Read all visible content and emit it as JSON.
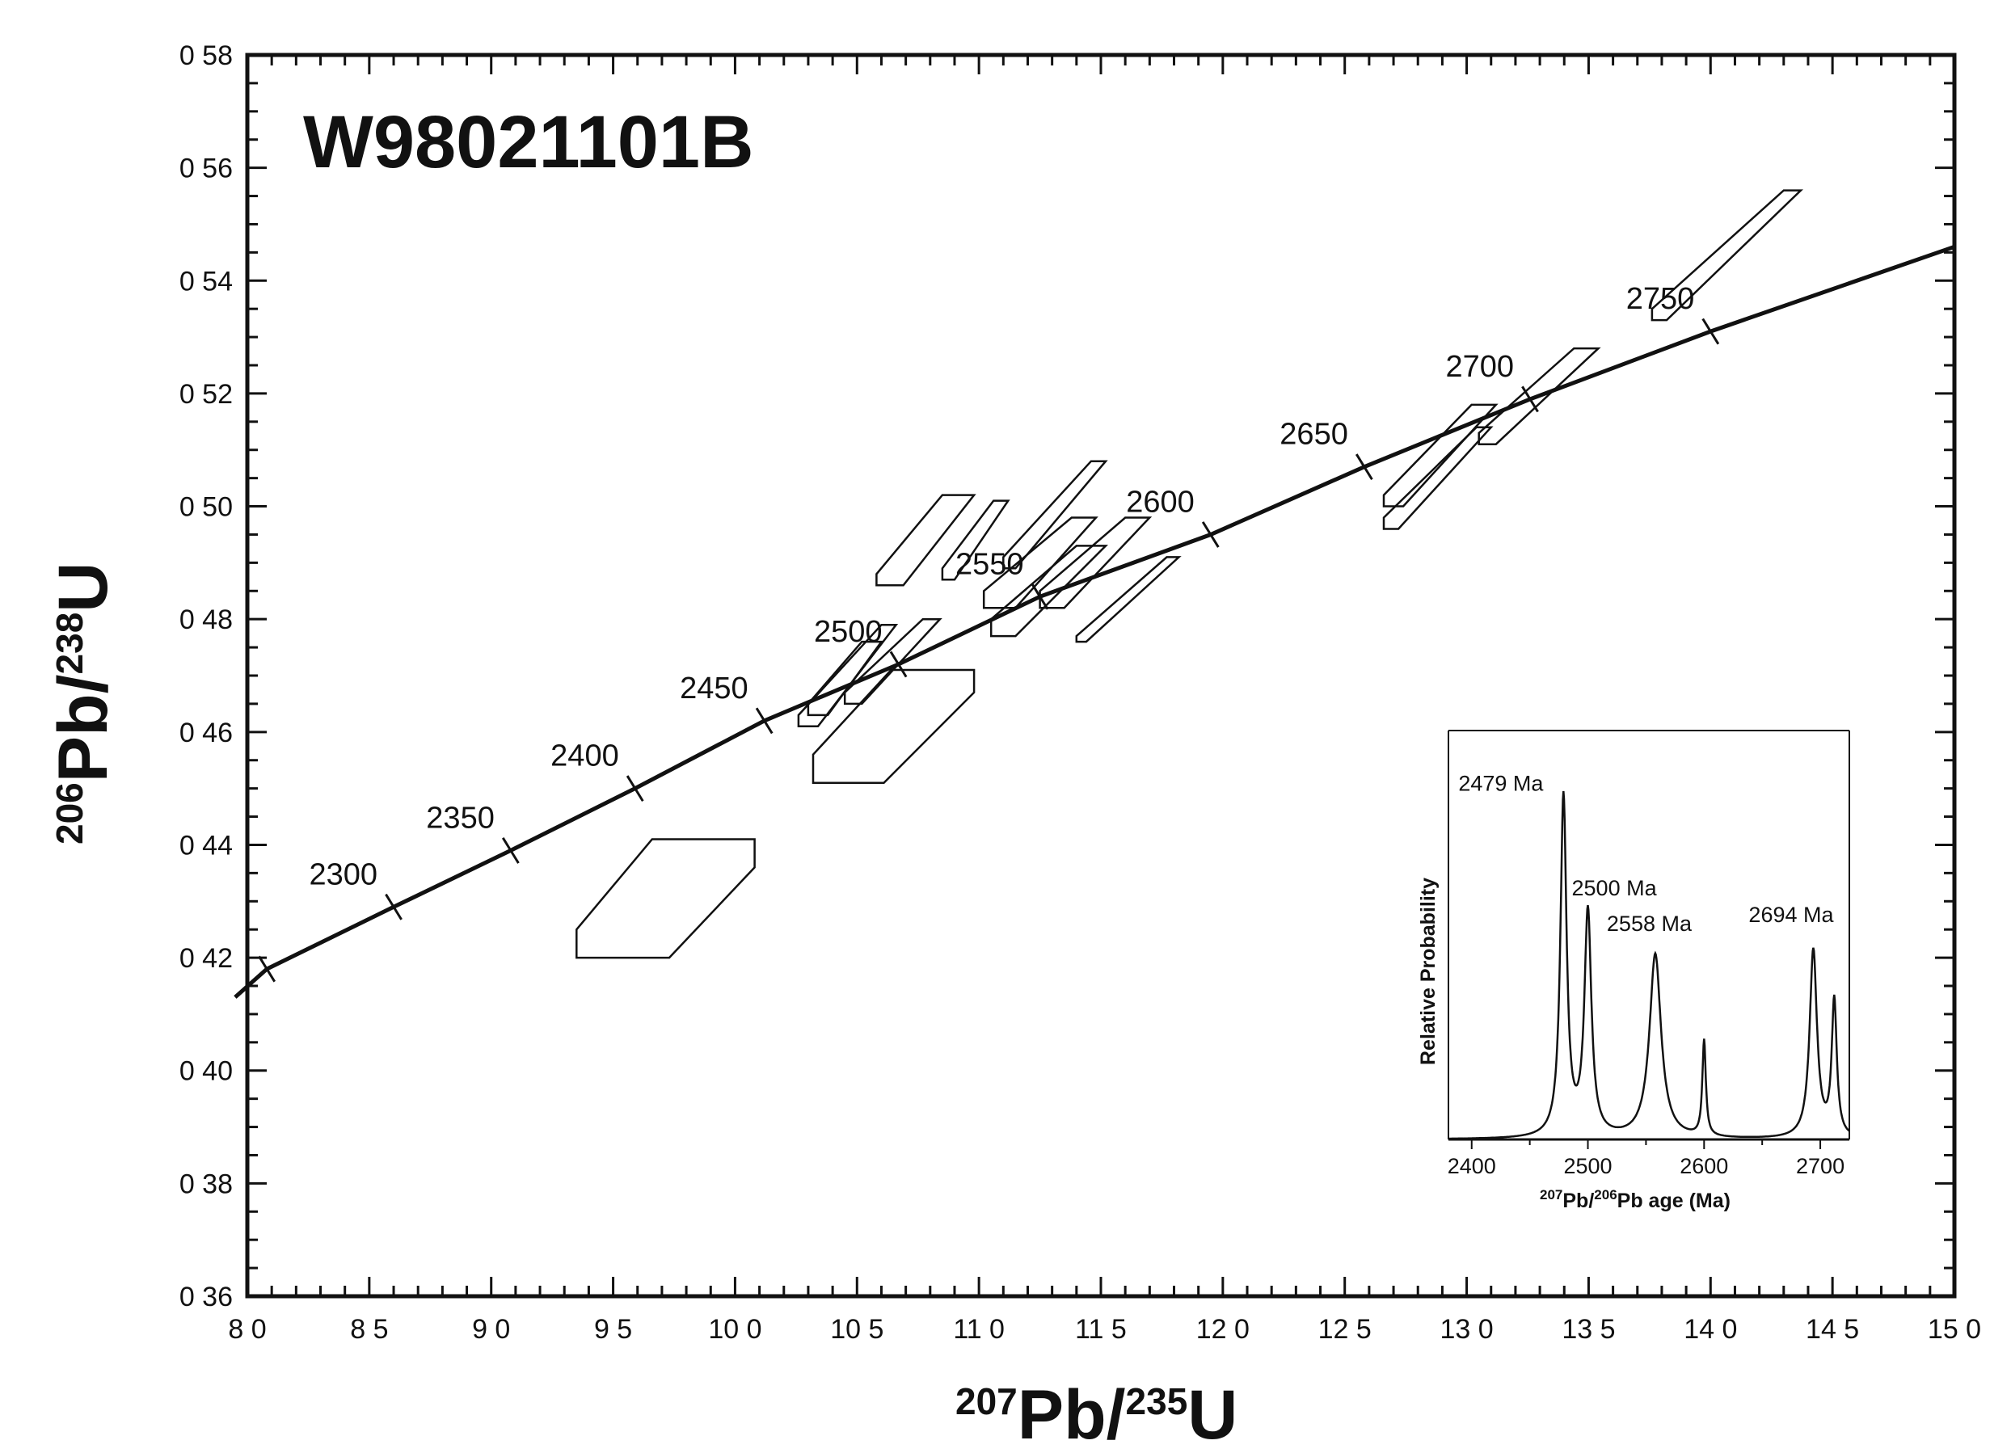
{
  "chart_data": [
    {
      "type": "scatter",
      "title": "W98021101B",
      "xlabel": {
        "sup1": "207",
        "base1": "Pb/",
        "sup2": "235",
        "base2": "U"
      },
      "ylabel": {
        "sup1": "206",
        "base1": "Pb/",
        "sup2": "238",
        "base2": "U"
      },
      "xlim": [
        8.0,
        15.0
      ],
      "ylim": [
        0.36,
        0.58
      ],
      "x_tick_labels": [
        "8 0",
        "8 5",
        "9 0",
        "9 5",
        "10 0",
        "10 5",
        "11 0",
        "11 5",
        "12 0",
        "12 5",
        "13 0",
        "13 5",
        "14 0",
        "14 5",
        "15 0"
      ],
      "x_tick_values": [
        8.0,
        8.5,
        9.0,
        9.5,
        10.0,
        10.5,
        11.0,
        11.5,
        12.0,
        12.5,
        13.0,
        13.5,
        14.0,
        14.5,
        15.0
      ],
      "y_tick_labels": [
        "0 36",
        "0 38",
        "0 40",
        "0 42",
        "0 44",
        "0 46",
        "0 48",
        "0 50",
        "0 52",
        "0 54",
        "0 56",
        "0 58"
      ],
      "y_tick_values": [
        0.36,
        0.38,
        0.4,
        0.42,
        0.44,
        0.46,
        0.48,
        0.5,
        0.52,
        0.54,
        0.56,
        0.58
      ],
      "concordia": {
        "ages": [
          {
            "label": "2300",
            "x": 8.6,
            "y": 0.429
          },
          {
            "label": "2350",
            "x": 9.08,
            "y": 0.439
          },
          {
            "label": "2400",
            "x": 9.59,
            "y": 0.45
          },
          {
            "label": "2450",
            "x": 10.12,
            "y": 0.462
          },
          {
            "label": "2500",
            "x": 10.67,
            "y": 0.472
          },
          {
            "label": "2550",
            "x": 11.25,
            "y": 0.484
          },
          {
            "label": "2600",
            "x": 11.95,
            "y": 0.495
          },
          {
            "label": "2650",
            "x": 12.58,
            "y": 0.507
          },
          {
            "label": "2700",
            "x": 13.26,
            "y": 0.519
          },
          {
            "label": "2750",
            "x": 14.0,
            "y": 0.531
          }
        ],
        "extra_ticks": [
          {
            "x": 8.08,
            "y": 0.418
          }
        ],
        "curve": [
          [
            7.95,
            0.413
          ],
          [
            8.08,
            0.418
          ],
          [
            8.6,
            0.429
          ],
          [
            9.08,
            0.439
          ],
          [
            9.59,
            0.45
          ],
          [
            10.12,
            0.462
          ],
          [
            10.67,
            0.472
          ],
          [
            11.25,
            0.484
          ],
          [
            11.95,
            0.495
          ],
          [
            12.58,
            0.507
          ],
          [
            13.26,
            0.519
          ],
          [
            14.0,
            0.531
          ],
          [
            15.0,
            0.546
          ]
        ]
      },
      "error_ellipses": [
        [
          [
            9.35,
            0.42
          ],
          [
            9.73,
            0.42
          ],
          [
            10.08,
            0.436
          ],
          [
            10.08,
            0.441
          ],
          [
            9.66,
            0.441
          ],
          [
            9.35,
            0.425
          ]
        ],
        [
          [
            10.32,
            0.451
          ],
          [
            10.61,
            0.451
          ],
          [
            10.98,
            0.467
          ],
          [
            10.98,
            0.471
          ],
          [
            10.64,
            0.471
          ],
          [
            10.32,
            0.456
          ]
        ],
        [
          [
            10.26,
            0.461
          ],
          [
            10.34,
            0.461
          ],
          [
            10.66,
            0.479
          ],
          [
            10.6,
            0.479
          ],
          [
            10.26,
            0.463
          ]
        ],
        [
          [
            10.3,
            0.463
          ],
          [
            10.38,
            0.463
          ],
          [
            10.6,
            0.476
          ],
          [
            10.52,
            0.476
          ],
          [
            10.3,
            0.465
          ]
        ],
        [
          [
            10.45,
            0.465
          ],
          [
            10.52,
            0.465
          ],
          [
            10.84,
            0.48
          ],
          [
            10.77,
            0.48
          ],
          [
            10.45,
            0.467
          ]
        ],
        [
          [
            10.58,
            0.486
          ],
          [
            10.69,
            0.486
          ],
          [
            10.98,
            0.502
          ],
          [
            10.85,
            0.502
          ],
          [
            10.58,
            0.488
          ]
        ],
        [
          [
            10.85,
            0.487
          ],
          [
            10.9,
            0.487
          ],
          [
            11.12,
            0.501
          ],
          [
            11.06,
            0.501
          ],
          [
            10.85,
            0.489
          ]
        ],
        [
          [
            11.02,
            0.482
          ],
          [
            11.15,
            0.482
          ],
          [
            11.48,
            0.498
          ],
          [
            11.38,
            0.498
          ],
          [
            11.02,
            0.485
          ]
        ],
        [
          [
            11.05,
            0.477
          ],
          [
            11.15,
            0.477
          ],
          [
            11.52,
            0.493
          ],
          [
            11.4,
            0.493
          ],
          [
            11.05,
            0.48
          ]
        ],
        [
          [
            11.1,
            0.489
          ],
          [
            11.15,
            0.489
          ],
          [
            11.52,
            0.508
          ],
          [
            11.46,
            0.508
          ],
          [
            11.1,
            0.491
          ]
        ],
        [
          [
            11.25,
            0.482
          ],
          [
            11.35,
            0.482
          ],
          [
            11.7,
            0.498
          ],
          [
            11.6,
            0.498
          ],
          [
            11.25,
            0.485
          ]
        ],
        [
          [
            11.4,
            0.476
          ],
          [
            11.44,
            0.476
          ],
          [
            11.82,
            0.491
          ],
          [
            11.77,
            0.491
          ],
          [
            11.4,
            0.477
          ]
        ],
        [
          [
            12.66,
            0.496
          ],
          [
            12.72,
            0.496
          ],
          [
            13.1,
            0.514
          ],
          [
            13.04,
            0.514
          ],
          [
            12.66,
            0.498
          ]
        ],
        [
          [
            12.66,
            0.5
          ],
          [
            12.74,
            0.5
          ],
          [
            13.12,
            0.518
          ],
          [
            13.02,
            0.518
          ],
          [
            12.66,
            0.502
          ]
        ],
        [
          [
            13.05,
            0.511
          ],
          [
            13.12,
            0.511
          ],
          [
            13.54,
            0.528
          ],
          [
            13.44,
            0.528
          ],
          [
            13.05,
            0.513
          ]
        ],
        [
          [
            13.76,
            0.533
          ],
          [
            13.82,
            0.533
          ],
          [
            14.37,
            0.556
          ],
          [
            14.3,
            0.556
          ],
          [
            13.76,
            0.535
          ]
        ]
      ]
    },
    {
      "type": "line",
      "title": "",
      "xlabel": {
        "sup1": "207",
        "base1": "Pb/",
        "sup2": "206",
        "base2": "Pb age (Ma)"
      },
      "ylabel": "Relative Probability",
      "xlim": [
        2380,
        2725
      ],
      "x_tick_labels": [
        "2400",
        "2500",
        "2600",
        "2700"
      ],
      "x_tick_values": [
        2400,
        2500,
        2600,
        2700
      ],
      "peaks": [
        {
          "age": 2479,
          "height": 0.85,
          "label": "2479 Ma"
        },
        {
          "age": 2500,
          "height": 0.56,
          "label": "2500  Ma"
        },
        {
          "age": 2558,
          "height": 0.46,
          "label": "2558 Ma"
        },
        {
          "age": 2600,
          "height": 0.24,
          "label": ""
        },
        {
          "age": 2694,
          "height": 0.47,
          "label": "2694 Ma"
        },
        {
          "age": 2712,
          "height": 0.34,
          "label": ""
        }
      ]
    }
  ]
}
